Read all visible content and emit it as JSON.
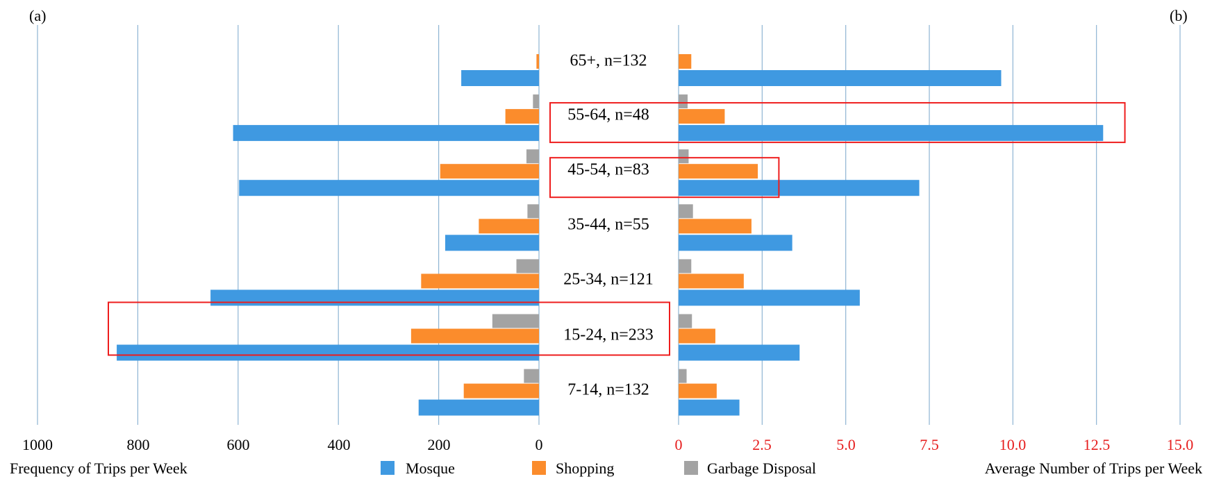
{
  "colors": {
    "mosque": "#3f99e1",
    "shopping": "#fb8c2c",
    "garbage": "#a3a3a3",
    "gridline": "#8eb4d3",
    "highlight": "#ee1c1c",
    "right_axis_ticks": "#e61c1c"
  },
  "chart_data": [
    {
      "panel_label": "(a)",
      "type": "bar",
      "orientation": "horizontal",
      "direction": "reversed",
      "xlabel": "Frequency of Trips per Week",
      "xlim": [
        0,
        1000
      ],
      "ticks": [
        1000,
        800,
        600,
        400,
        200,
        0
      ],
      "tick_labels": [
        "1000",
        "800",
        "600",
        "400",
        "200",
        "0"
      ],
      "grid": true,
      "categories": [
        "65+, n=132",
        "55-64, n=48",
        "45-54, n=83",
        "35-44, n=55",
        "25-34, n=121",
        "15-24, n=233",
        "7-14, n=132"
      ],
      "series": [
        {
          "name": "Mosque",
          "values": [
            155,
            610,
            598,
            187,
            655,
            842,
            240
          ]
        },
        {
          "name": "Shopping",
          "values": [
            5,
            67,
            197,
            120,
            235,
            255,
            150
          ]
        },
        {
          "name": "Garbage Disposal",
          "values": [
            0,
            12,
            25,
            23,
            45,
            93,
            30
          ]
        }
      ],
      "highlighted": [
        "15-24, n=233"
      ]
    },
    {
      "panel_label": "(b)",
      "type": "bar",
      "orientation": "horizontal",
      "xlabel": "Average Number of Trips per Week",
      "xlim": [
        0,
        15
      ],
      "ticks": [
        0,
        2.5,
        5,
        7.5,
        10,
        12.5,
        15
      ],
      "tick_labels": [
        "0",
        "2.5",
        "5.0",
        "7.5",
        "10.0",
        "12.5",
        "15.0"
      ],
      "grid": true,
      "categories": [
        "65+, n=132",
        "55-64, n=48",
        "45-54, n=83",
        "35-44, n=55",
        "25-34, n=121",
        "15-24, n=233",
        "7-14, n=132"
      ],
      "series": [
        {
          "name": "Mosque",
          "values": [
            9.65,
            12.7,
            7.2,
            3.4,
            5.42,
            3.62,
            1.82
          ]
        },
        {
          "name": "Shopping",
          "values": [
            0.38,
            1.38,
            2.37,
            2.18,
            1.95,
            1.1,
            1.14
          ]
        },
        {
          "name": "Garbage Disposal",
          "values": [
            0,
            0.27,
            0.3,
            0.43,
            0.38,
            0.4,
            0.24
          ]
        }
      ],
      "highlighted": [
        "55-64, n=48",
        "45-54, n=83"
      ],
      "highlight_extent": {
        "55-64, n=48": 13.35,
        "45-54, n=83": 3
      }
    }
  ],
  "legend": {
    "placement": "bottom-center",
    "items": [
      {
        "key": "mosque",
        "label": "Mosque"
      },
      {
        "key": "shopping",
        "label": "Shopping"
      },
      {
        "key": "garbage",
        "label": "Garbage Disposal"
      }
    ]
  }
}
